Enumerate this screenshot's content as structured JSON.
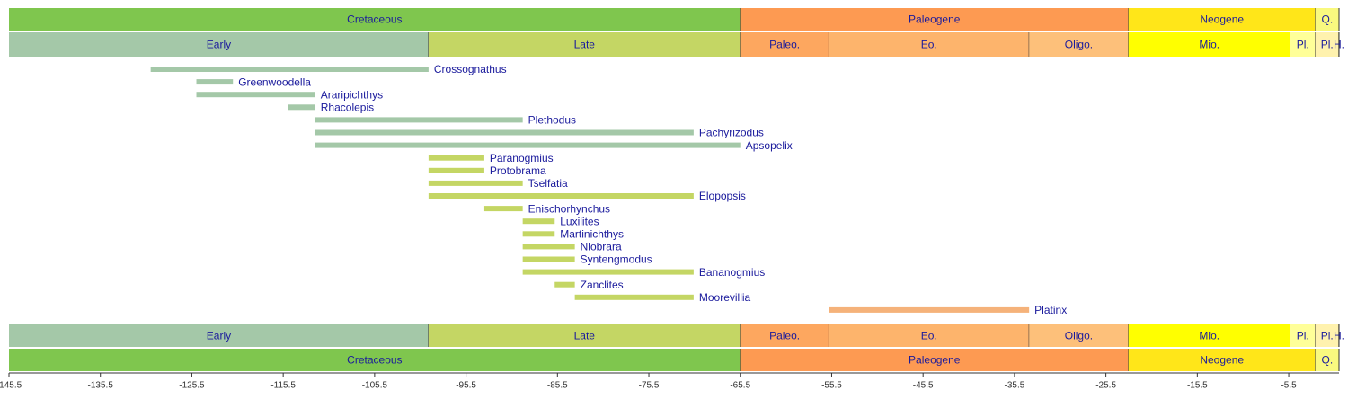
{
  "chart_data": {
    "type": "timeline",
    "xlim": [
      -145.5,
      0
    ],
    "xticks": [
      -145.5,
      -135.5,
      -125.5,
      -115.5,
      -105.5,
      -95.5,
      -85.5,
      -75.5,
      -65.5,
      -55.5,
      -45.5,
      -35.5,
      -25.5,
      -15.5,
      -5.5
    ],
    "periods": [
      {
        "name": "Cretaceous",
        "start": -145.5,
        "end": -65.5,
        "color": "#7fc64e"
      },
      {
        "name": "Paleogene",
        "start": -65.5,
        "end": -23.03,
        "color": "#fd9a52"
      },
      {
        "name": "Neogene",
        "start": -23.03,
        "end": -2.588,
        "color": "#ffe619"
      },
      {
        "name": "Q.",
        "start": -2.588,
        "end": 0,
        "color": "#f9f97f"
      }
    ],
    "epochs": [
      {
        "name": "Early",
        "start": -145.5,
        "end": -99.6,
        "color": "#a4c8a8"
      },
      {
        "name": "Late",
        "start": -99.6,
        "end": -65.5,
        "color": "#c4d664"
      },
      {
        "name": "Paleo.",
        "start": -65.5,
        "end": -55.8,
        "color": "#fda75f"
      },
      {
        "name": "Eo.",
        "start": -55.8,
        "end": -33.9,
        "color": "#fdb46c"
      },
      {
        "name": "Oligo.",
        "start": -33.9,
        "end": -23.03,
        "color": "#fdc07a"
      },
      {
        "name": "Mio.",
        "start": -23.03,
        "end": -5.332,
        "color": "#ffff00"
      },
      {
        "name": "Pl.",
        "start": -5.332,
        "end": -2.588,
        "color": "#ffff99"
      },
      {
        "name": "Pl.",
        "start": -2.588,
        "end": -0.0117,
        "color": "#fff2ae"
      },
      {
        "name": "H.",
        "start": -0.0117,
        "end": 0,
        "color": "#fef2e0"
      }
    ],
    "taxa": [
      {
        "name": "Crossognathus",
        "start": -130,
        "end": -99.6,
        "color": "#a4c8a8"
      },
      {
        "name": "Greenwoodella",
        "start": -125,
        "end": -121,
        "color": "#a4c8a8"
      },
      {
        "name": "Araripichthys",
        "start": -125,
        "end": -112,
        "color": "#a4c8a8"
      },
      {
        "name": "Rhacolepis",
        "start": -115,
        "end": -112,
        "color": "#a4c8a8"
      },
      {
        "name": "Plethodus",
        "start": -112,
        "end": -89.3,
        "color": "#a4c8a8"
      },
      {
        "name": "Pachyrizodus",
        "start": -112,
        "end": -70.6,
        "color": "#a4c8a8"
      },
      {
        "name": "Apsopelix",
        "start": -112,
        "end": -65.5,
        "color": "#a4c8a8"
      },
      {
        "name": "Paranogmius",
        "start": -99.6,
        "end": -93.5,
        "color": "#c4d664"
      },
      {
        "name": "Protobrama",
        "start": -99.6,
        "end": -93.5,
        "color": "#c4d664"
      },
      {
        "name": "Tselfatia",
        "start": -99.6,
        "end": -89.3,
        "color": "#c4d664"
      },
      {
        "name": "Elopopsis",
        "start": -99.6,
        "end": -70.6,
        "color": "#c4d664"
      },
      {
        "name": "Enischorhynchus",
        "start": -93.5,
        "end": -89.3,
        "color": "#c4d664"
      },
      {
        "name": "Luxilites",
        "start": -89.3,
        "end": -85.8,
        "color": "#c4d664"
      },
      {
        "name": "Martinichthys",
        "start": -89.3,
        "end": -85.8,
        "color": "#c4d664"
      },
      {
        "name": "Niobrara",
        "start": -89.3,
        "end": -83.6,
        "color": "#c4d664"
      },
      {
        "name": "Syntengmodus",
        "start": -89.3,
        "end": -83.6,
        "color": "#c4d664"
      },
      {
        "name": "Bananogmius",
        "start": -89.3,
        "end": -70.6,
        "color": "#c4d664"
      },
      {
        "name": "Zanclites",
        "start": -85.8,
        "end": -83.6,
        "color": "#c4d664"
      },
      {
        "name": "Moorevillia",
        "start": -83.6,
        "end": -70.6,
        "color": "#c4d664"
      },
      {
        "name": "Platinx",
        "start": -55.8,
        "end": -33.9,
        "color": "#f5b27a"
      }
    ]
  }
}
